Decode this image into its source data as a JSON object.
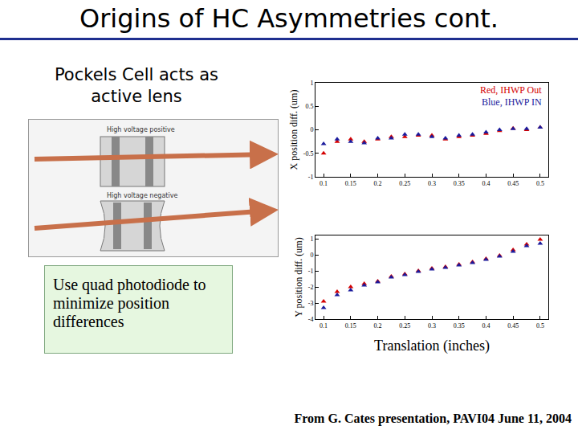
{
  "slide": {
    "title": "Origins of HC Asymmetries cont.",
    "heading": "Pockels Cell acts as active lens",
    "diagram": {
      "label_top": "High voltage positive",
      "label_bottom": "High voltage negative"
    },
    "box_text": "Use quad photodiode to minimize position differences",
    "footer": "From G. Cates presentation, PAVI04 June 11, 2004"
  },
  "chart_data": [
    {
      "type": "scatter",
      "y_label": "X position diff. (um)",
      "x": [
        0.1,
        0.125,
        0.15,
        0.175,
        0.2,
        0.225,
        0.25,
        0.275,
        0.3,
        0.325,
        0.35,
        0.375,
        0.4,
        0.425,
        0.45,
        0.475,
        0.5
      ],
      "xlim": [
        0.085,
        0.515
      ],
      "xticks": [
        0.1,
        0.15,
        0.2,
        0.25,
        0.3,
        0.35,
        0.4,
        0.45,
        0.5
      ],
      "ylim": [
        -1,
        1
      ],
      "yticks": [
        -1,
        -0.5,
        0,
        0.5,
        1
      ],
      "grid": false,
      "legend": "top right",
      "series": [
        {
          "name": "Red, IHWP Out",
          "color": "#d40000",
          "marker": "triangle-up",
          "values": [
            -0.5,
            -0.25,
            -0.2,
            -0.25,
            -0.2,
            -0.15,
            -0.15,
            -0.12,
            -0.12,
            -0.2,
            -0.15,
            -0.12,
            -0.08,
            -0.02,
            0.03,
            0.0,
            0.05
          ]
        },
        {
          "name": "Blue, IHWP IN",
          "color": "#1a1a9c",
          "marker": "triangle-up",
          "values": [
            -0.3,
            -0.2,
            -0.25,
            -0.28,
            -0.18,
            -0.18,
            -0.1,
            -0.1,
            -0.15,
            -0.18,
            -0.12,
            -0.1,
            -0.05,
            0.0,
            0.02,
            0.02,
            0.05
          ]
        }
      ]
    },
    {
      "type": "scatter",
      "y_label": "Y position diff. (um)",
      "x_label": "Translation (inches)",
      "x": [
        0.1,
        0.125,
        0.15,
        0.175,
        0.2,
        0.225,
        0.25,
        0.275,
        0.3,
        0.325,
        0.35,
        0.375,
        0.4,
        0.425,
        0.45,
        0.475,
        0.5
      ],
      "xlim": [
        0.085,
        0.515
      ],
      "xticks": [
        0.1,
        0.15,
        0.2,
        0.25,
        0.3,
        0.35,
        0.4,
        0.45,
        0.5
      ],
      "ylim": [
        -4,
        1.2
      ],
      "yticks": [
        -4,
        -3,
        -2,
        -1,
        0,
        1
      ],
      "grid": false,
      "series": [
        {
          "color": "#d40000",
          "marker": "triangle-up",
          "values": [
            -2.9,
            -2.3,
            -2.0,
            -1.8,
            -1.65,
            -1.35,
            -1.2,
            -1.0,
            -0.85,
            -0.75,
            -0.6,
            -0.45,
            -0.25,
            -0.05,
            0.3,
            0.65,
            0.95
          ]
        },
        {
          "color": "#1a1a9c",
          "marker": "triangle-up",
          "values": [
            -3.3,
            -2.5,
            -2.2,
            -1.9,
            -1.7,
            -1.4,
            -1.25,
            -1.05,
            -0.9,
            -0.8,
            -0.65,
            -0.5,
            -0.3,
            -0.1,
            0.2,
            0.55,
            0.7
          ]
        }
      ]
    }
  ]
}
